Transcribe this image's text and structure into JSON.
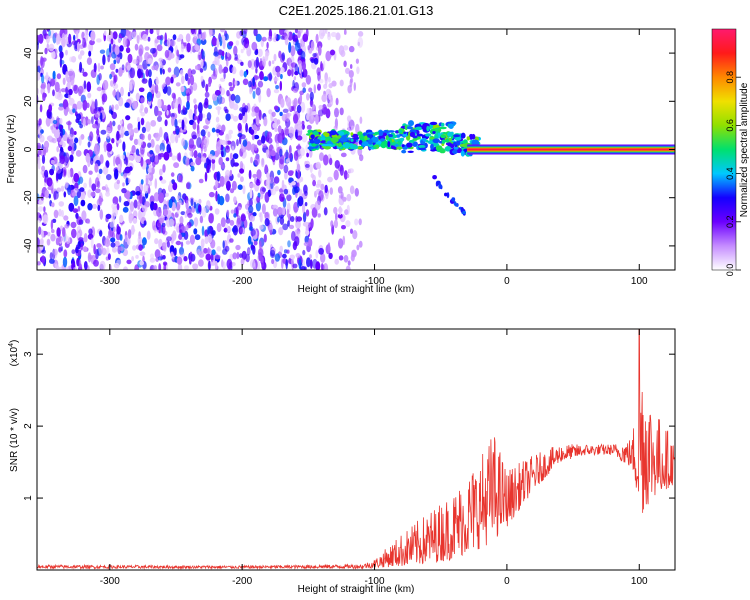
{
  "figure": {
    "title": "C2E1.2025.186.21.01.G13"
  },
  "chart_data": [
    {
      "type": "heatmap",
      "title": "C2E1.2025.186.21.01.G13",
      "xlabel": "Height of straight line (km)",
      "ylabel": "Frequency (Hz)",
      "xlim": [
        -355,
        127
      ],
      "ylim": [
        -50,
        50
      ],
      "x_ticks": [
        -300,
        -200,
        -100,
        0,
        100
      ],
      "y_ticks": [
        -40,
        -20,
        0,
        20,
        40
      ],
      "colorbar": {
        "label": "Normalized spectral amplitude",
        "range": [
          0,
          1
        ],
        "ticks": [
          "0.0",
          "0.2",
          "0.4",
          "0.6",
          "0.8"
        ],
        "colors": [
          "#ffffff",
          "#c58cff",
          "#6b00ff",
          "#1400ff",
          "#00c8ff",
          "#00e06e",
          "#90e000",
          "#f0e000",
          "#ff8800",
          "#ff1a1a",
          "#ff1a6e"
        ]
      },
      "regions": [
        {
          "name": "noise",
          "x": [
            -355,
            -120
          ],
          "y": [
            -50,
            50
          ],
          "level": 0.17
        },
        {
          "name": "sideband",
          "x": [
            -150,
            -20
          ],
          "y": [
            -4,
            12
          ],
          "level": 0.5
        },
        {
          "name": "carrier",
          "x": [
            -30,
            127
          ],
          "y": [
            0,
            0
          ],
          "level": 0.95
        },
        {
          "name": "streak",
          "x": [
            -55,
            -30
          ],
          "y": [
            -28,
            -12
          ],
          "level": 0.25
        }
      ]
    },
    {
      "type": "line",
      "xlabel": "Height of straight line (km)",
      "ylabel": "SNR (10 * v/v)",
      "y_multiplier": "(x10",
      "y_multiplier_exp": "4",
      "y_multiplier_close": ")",
      "xlim": [
        -355,
        127
      ],
      "ylim": [
        0,
        3.35
      ],
      "x_ticks": [
        -300,
        -200,
        -100,
        0,
        100
      ],
      "y_ticks": [
        1,
        2,
        3
      ],
      "series": [
        {
          "color": "#e8352e",
          "envelope": {
            "x": [
              -355,
              -200,
              -110,
              -100,
              -80,
              -60,
              -40,
              -20,
              -10,
              0,
              20,
              40,
              60,
              80,
              95,
              100,
              110,
              127
            ],
            "low": [
              0.02,
              0.02,
              0.02,
              0.03,
              0.05,
              0.08,
              0.15,
              0.3,
              0.4,
              0.6,
              1.1,
              1.5,
              1.6,
              1.6,
              1.4,
              0.7,
              1.0,
              1.2
            ],
            "high": [
              0.07,
              0.06,
              0.08,
              0.15,
              0.5,
              0.8,
              1.1,
              1.6,
              1.95,
              1.4,
              1.6,
              1.75,
              1.75,
              1.75,
              1.85,
              3.35,
              2.3,
              1.8
            ]
          }
        }
      ]
    }
  ]
}
